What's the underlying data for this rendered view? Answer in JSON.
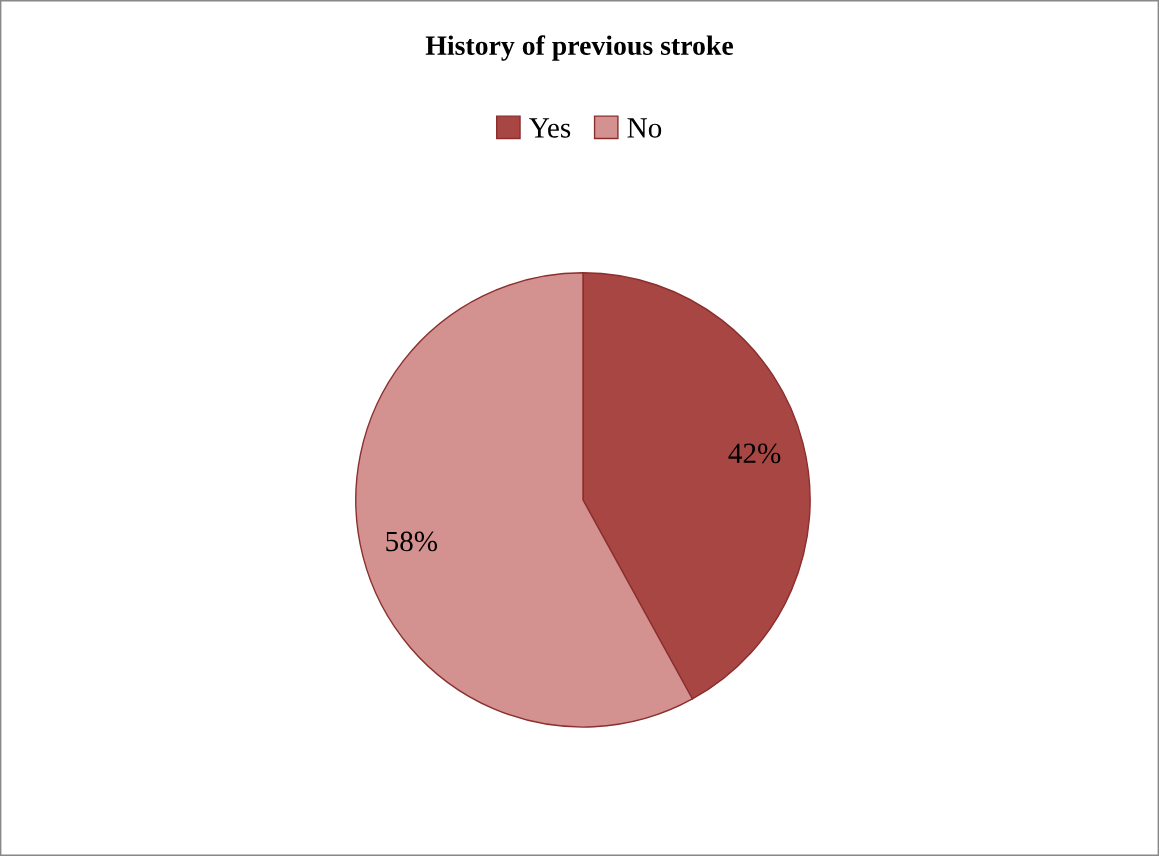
{
  "chart_data": {
    "type": "pie",
    "title": "History of previous stroke",
    "categories": [
      "Yes",
      "No"
    ],
    "values": [
      42,
      58
    ],
    "colors": [
      "#a84643",
      "#d39190"
    ],
    "value_labels": [
      "42%",
      "58%"
    ],
    "legend": "top"
  }
}
